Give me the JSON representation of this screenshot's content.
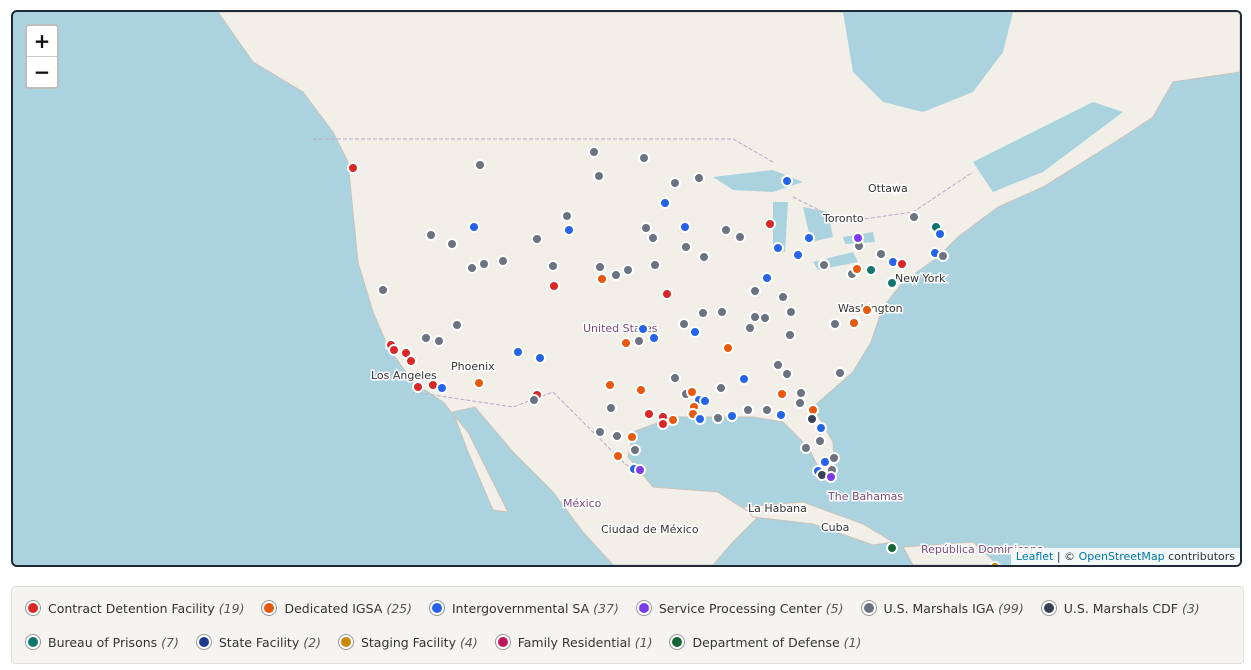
{
  "map": {
    "zoom_in": "+",
    "zoom_out": "−",
    "places": [
      "Ottawa",
      "Toronto",
      "New York",
      "Washington",
      "United States",
      "Phoenix",
      "Los Angeles",
      "México",
      "Ciudad de México",
      "La Habana",
      "Cuba",
      "The Bahamas",
      "República Dominicana"
    ],
    "attribution": {
      "leaflet": "Leaflet",
      "separator": "| ©",
      "osm": "OpenStreetMap",
      "contributors": "contributors"
    }
  },
  "legend": [
    {
      "name": "Contract Detention Facility",
      "count": "(19)",
      "color": "#dc2626"
    },
    {
      "name": "Dedicated IGSA",
      "count": "(25)",
      "color": "#ea580c"
    },
    {
      "name": "Intergovernmental SA",
      "count": "(37)",
      "color": "#2563eb"
    },
    {
      "name": "Service Processing Center",
      "count": "(5)",
      "color": "#7c3aed"
    },
    {
      "name": "U.S. Marshals IGA",
      "count": "(99)",
      "color": "#6b7280"
    },
    {
      "name": "U.S. Marshals CDF",
      "count": "(3)",
      "color": "#374151"
    },
    {
      "name": "Bureau of Prisons",
      "count": "(7)",
      "color": "#0f766e"
    },
    {
      "name": "State Facility",
      "count": "(2)",
      "color": "#1e3a8a"
    },
    {
      "name": "Staging Facility",
      "count": "(4)",
      "color": "#ca8a04"
    },
    {
      "name": "Family Residential",
      "count": "(1)",
      "color": "#be185d"
    },
    {
      "name": "Department of Defense",
      "count": "(1)",
      "color": "#166534"
    }
  ]
}
